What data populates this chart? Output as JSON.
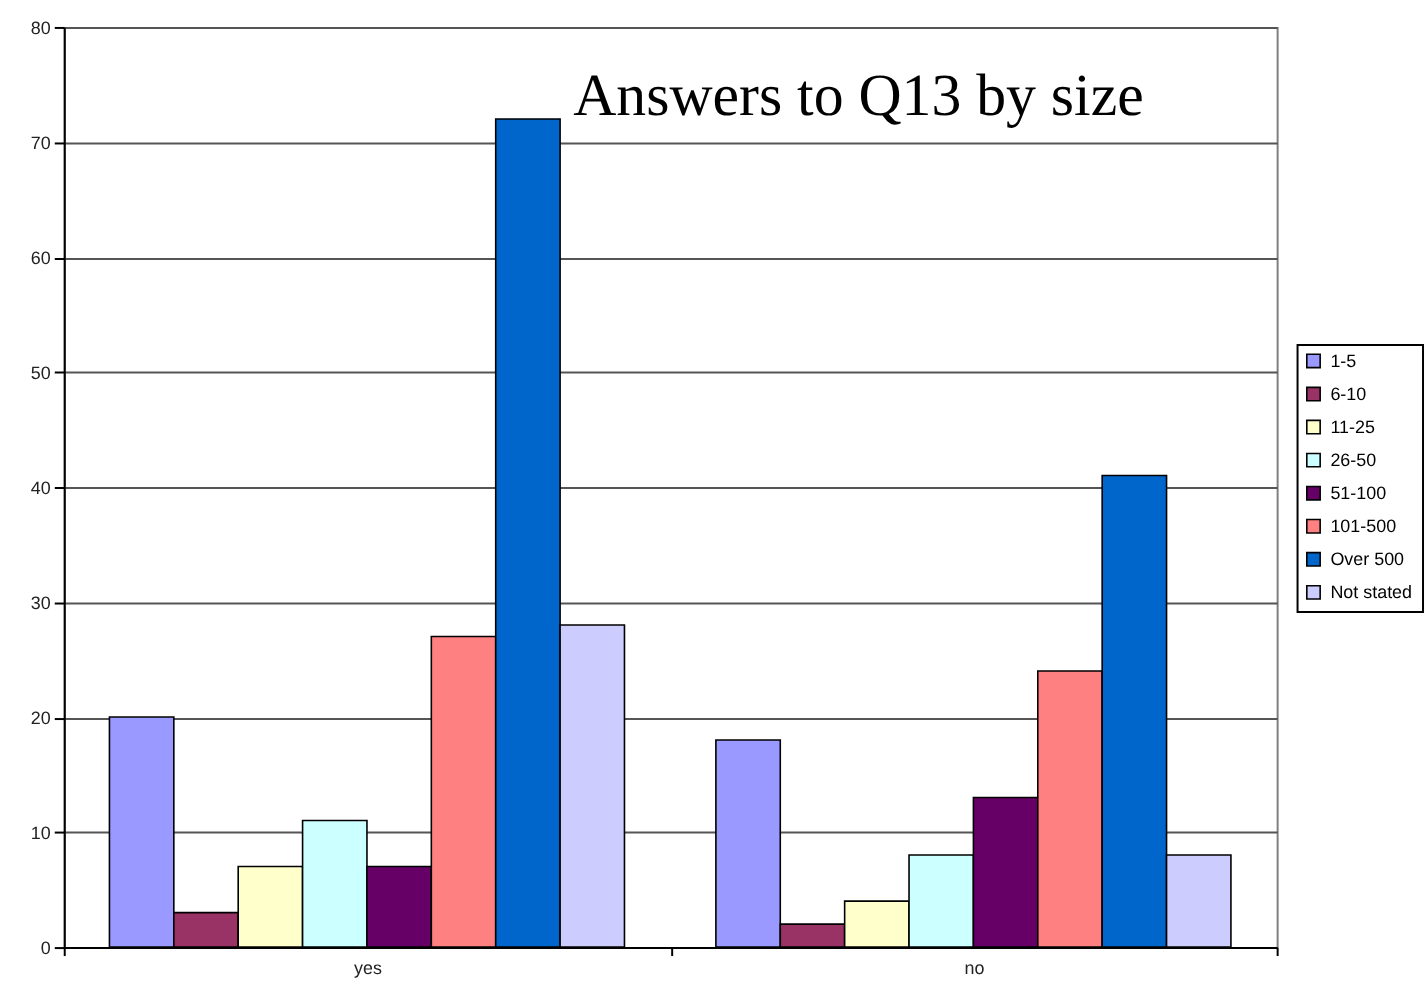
{
  "chart_data": {
    "type": "bar",
    "title": "Answers to Q13 by size",
    "categories": [
      "yes",
      "no"
    ],
    "series": [
      {
        "name": "1-5",
        "color": "#9999ff",
        "values": [
          20,
          18
        ]
      },
      {
        "name": "6-10",
        "color": "#993366",
        "values": [
          3,
          2
        ]
      },
      {
        "name": "11-25",
        "color": "#ffffcc",
        "values": [
          7,
          4
        ]
      },
      {
        "name": "26-50",
        "color": "#ccffff",
        "values": [
          11,
          8
        ]
      },
      {
        "name": "51-100",
        "color": "#660066",
        "values": [
          7,
          13
        ]
      },
      {
        "name": "101-500",
        "color": "#ff8080",
        "values": [
          27,
          24
        ]
      },
      {
        "name": "Over 500",
        "color": "#0066cc",
        "values": [
          72,
          41
        ]
      },
      {
        "name": "Not stated",
        "color": "#ccccff",
        "values": [
          28,
          8
        ]
      }
    ],
    "ylim": [
      0,
      80
    ],
    "yticks": [
      0,
      10,
      20,
      30,
      40,
      50,
      60,
      70,
      80
    ],
    "grid": "y",
    "legend": "right"
  }
}
